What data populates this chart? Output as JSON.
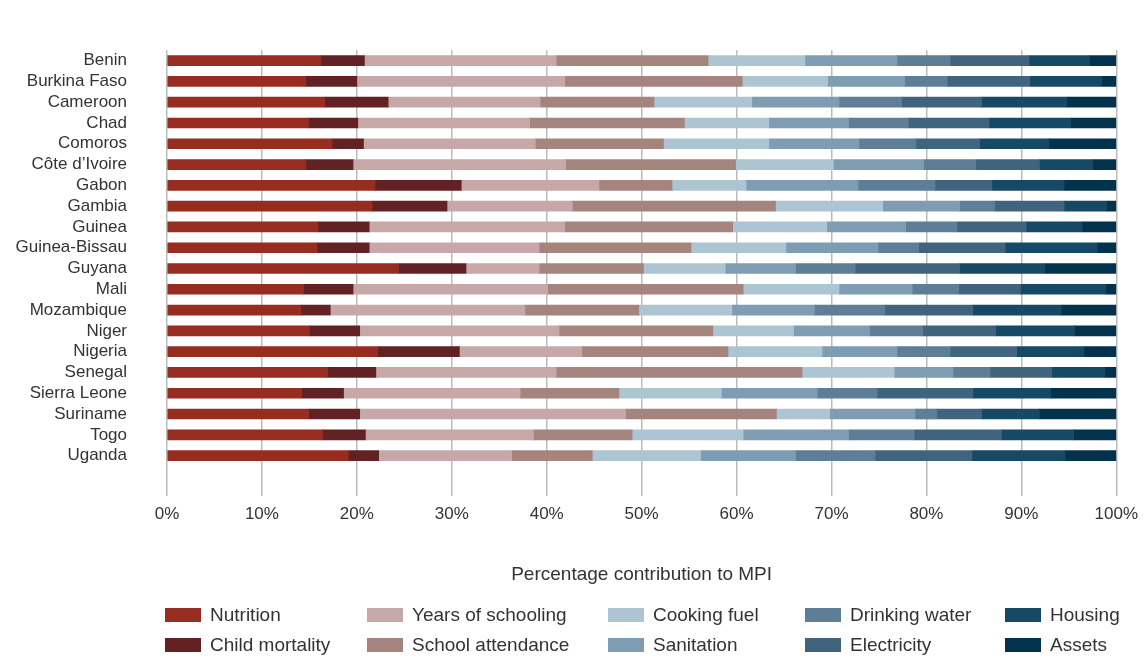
{
  "chart_data": {
    "type": "bar",
    "orientation": "horizontal",
    "stacked": true,
    "xlabel": "Percentage contribution to MPI",
    "categories": [
      "Benin",
      "Burkina Faso",
      "Cameroon",
      "Chad",
      "Comoros",
      "Côte d’Ivoire",
      "Gabon",
      "Gambia",
      "Guinea",
      "Guinea-Bissau",
      "Guyana",
      "Mali",
      "Mozambique",
      "Niger",
      "Nigeria",
      "Senegal",
      "Sierra Leone",
      "Suriname",
      "Togo",
      "Uganda"
    ],
    "xlim": [
      0,
      100
    ],
    "xticks": [
      {
        "value": 0,
        "label": "0%"
      },
      {
        "value": 10,
        "label": "10%"
      },
      {
        "value": 20,
        "label": "20%"
      },
      {
        "value": 30,
        "label": "30%"
      },
      {
        "value": 40,
        "label": "40%"
      },
      {
        "value": 50,
        "label": "50%"
      },
      {
        "value": 60,
        "label": "60%"
      },
      {
        "value": 70,
        "label": "70%"
      },
      {
        "value": 80,
        "label": "80%"
      },
      {
        "value": 90,
        "label": "90%"
      },
      {
        "value": 100,
        "label": "100%"
      }
    ],
    "grid": "x",
    "legend": "bottom",
    "series": [
      {
        "name": "Nutrition",
        "color": "#972c21",
        "values": [
          16.2,
          14.6,
          16.6,
          14.9,
          17.4,
          14.6,
          21.9,
          21.6,
          15.9,
          15.8,
          24.4,
          14.4,
          14.1,
          15.0,
          22.2,
          16.9,
          14.2,
          14.9,
          16.4,
          19.1
        ]
      },
      {
        "name": "Child mortality",
        "color": "#622223",
        "values": [
          4.6,
          5.4,
          6.7,
          5.2,
          3.3,
          5.0,
          9.1,
          7.9,
          5.4,
          5.5,
          7.1,
          5.2,
          3.1,
          5.3,
          8.6,
          5.1,
          4.4,
          5.4,
          4.5,
          3.2
        ]
      },
      {
        "name": "Years of schooling",
        "color": "#c7a8a9",
        "values": [
          20.2,
          21.9,
          16.0,
          18.1,
          18.1,
          22.4,
          14.5,
          13.2,
          20.6,
          17.9,
          7.7,
          20.5,
          20.5,
          21.0,
          12.9,
          19.0,
          18.6,
          28.0,
          17.7,
          14.0
        ]
      },
      {
        "name": "School attendance",
        "color": "#a5847e",
        "values": [
          16.0,
          18.7,
          12.0,
          16.3,
          13.5,
          17.9,
          7.7,
          21.4,
          17.7,
          16.0,
          11.0,
          20.6,
          12.0,
          16.2,
          15.4,
          25.9,
          10.4,
          15.9,
          10.4,
          8.5
        ]
      },
      {
        "name": "Cooking fuel",
        "color": "#adc4d3",
        "values": [
          10.2,
          9.0,
          10.3,
          8.9,
          11.1,
          10.3,
          7.8,
          11.3,
          9.9,
          10.0,
          8.6,
          10.1,
          9.8,
          8.5,
          9.9,
          9.7,
          10.8,
          5.6,
          11.7,
          11.4
        ]
      },
      {
        "name": "Sanitation",
        "color": "#7f9db2",
        "values": [
          9.7,
          8.1,
          9.2,
          8.4,
          9.5,
          9.5,
          11.8,
          8.1,
          8.3,
          9.7,
          7.4,
          7.7,
          8.7,
          8.0,
          7.9,
          6.2,
          10.1,
          9.0,
          11.1,
          10.0
        ]
      },
      {
        "name": "Drinking water",
        "color": "#5d7e96",
        "values": [
          5.6,
          4.5,
          6.6,
          6.3,
          6.0,
          5.5,
          8.1,
          3.7,
          5.4,
          4.3,
          6.3,
          4.9,
          7.4,
          5.6,
          5.6,
          3.9,
          6.3,
          2.3,
          6.9,
          8.4
        ]
      },
      {
        "name": "Electricity",
        "color": "#41647e",
        "values": [
          8.3,
          8.7,
          8.4,
          8.5,
          6.7,
          6.7,
          6.0,
          7.3,
          7.3,
          9.1,
          11.0,
          6.5,
          9.3,
          7.7,
          7.0,
          6.5,
          10.1,
          4.7,
          9.2,
          10.2
        ]
      },
      {
        "name": "Housing",
        "color": "#164966",
        "values": [
          6.4,
          7.6,
          9.0,
          8.6,
          7.3,
          5.6,
          7.6,
          4.5,
          5.9,
          9.7,
          9.0,
          9.0,
          9.3,
          8.3,
          7.1,
          5.6,
          8.2,
          6.1,
          7.6,
          9.8
        ]
      },
      {
        "name": "Assets",
        "color": "#03324d",
        "values": [
          2.8,
          1.5,
          5.2,
          4.8,
          7.1,
          2.5,
          5.5,
          1.0,
          3.6,
          2.0,
          7.5,
          1.1,
          5.8,
          4.4,
          3.4,
          1.2,
          6.9,
          8.1,
          4.5,
          5.4
        ]
      }
    ]
  }
}
